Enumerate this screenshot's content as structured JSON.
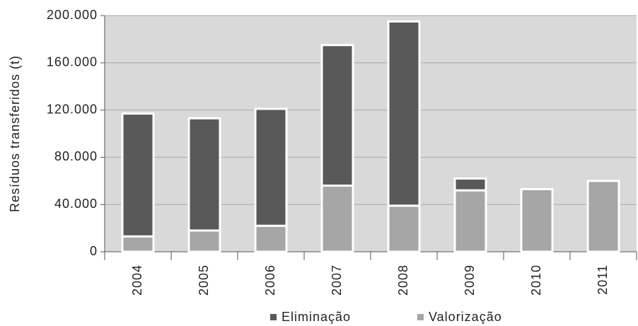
{
  "chart_data": {
    "type": "stacked_bar",
    "y_label": "Resíduos transferidos (t)",
    "categories": [
      "2004",
      "2005",
      "2006",
      "2007",
      "2008",
      "2009",
      "2010",
      "2011"
    ],
    "series": [
      {
        "name": "Valorização",
        "color": "#a6a6a6",
        "values": [
          13000,
          18000,
          22000,
          56000,
          39000,
          52000,
          53000,
          60000
        ]
      },
      {
        "name": "Eliminação",
        "color": "#595959",
        "values": [
          104000,
          95000,
          99000,
          119000,
          156000,
          10000,
          0,
          0
        ]
      }
    ],
    "ylim": [
      0,
      200000
    ],
    "yticks": [
      0,
      {
        "value": 40000,
        "label": "40.000"
      },
      {
        "value": 80000,
        "label": "80.000"
      },
      {
        "value": 120000,
        "label": "120.000"
      },
      {
        "value": 160000,
        "label": "160.000"
      },
      {
        "value": 200000,
        "label": "200.000"
      }
    ],
    "grid": true,
    "legend": "bottom"
  }
}
